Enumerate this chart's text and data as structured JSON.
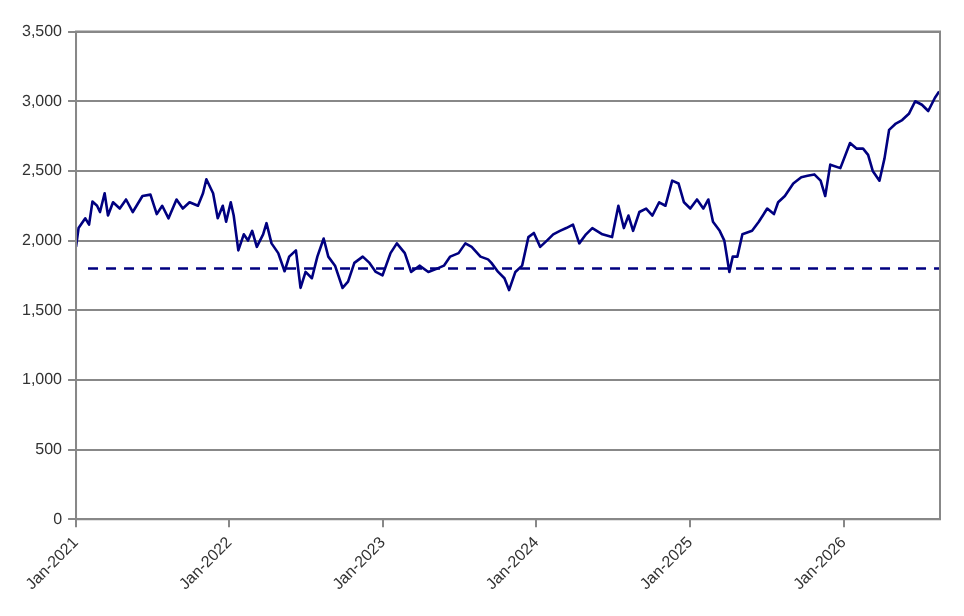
{
  "chart_data": {
    "type": "line",
    "x": [
      "2021-01-01",
      "2021-01-07",
      "2021-01-23",
      "2021-02-01",
      "2021-02-09",
      "2021-02-20",
      "2021-02-27",
      "2021-03-10",
      "2021-03-18",
      "2021-03-30",
      "2021-04-15",
      "2021-04-30",
      "2021-05-16",
      "2021-06-08",
      "2021-06-27",
      "2021-07-12",
      "2021-07-25",
      "2021-08-09",
      "2021-08-28",
      "2021-09-12",
      "2021-09-28",
      "2021-10-18",
      "2021-10-30",
      "2021-11-07",
      "2021-11-23",
      "2021-12-04",
      "2021-12-16",
      "2021-12-24",
      "2022-01-04",
      "2022-01-11",
      "2022-01-22",
      "2022-02-04",
      "2022-02-14",
      "2022-02-24",
      "2022-03-07",
      "2022-03-22",
      "2022-03-30",
      "2022-04-11",
      "2022-04-27",
      "2022-05-12",
      "2022-05-23",
      "2022-06-08",
      "2022-06-19",
      "2022-07-01",
      "2022-07-16",
      "2022-07-29",
      "2022-08-13",
      "2022-08-24",
      "2022-09-09",
      "2022-09-27",
      "2022-10-10",
      "2022-10-25",
      "2022-11-14",
      "2022-11-30",
      "2022-12-15",
      "2022-12-31",
      "2023-01-19",
      "2023-02-03",
      "2023-02-22",
      "2023-03-09",
      "2023-03-29",
      "2023-04-19",
      "2023-05-07",
      "2023-05-26",
      "2023-06-10",
      "2023-06-30",
      "2023-07-16",
      "2023-07-31",
      "2023-08-21",
      "2023-09-08",
      "2023-09-16",
      "2023-10-02",
      "2023-10-17",
      "2023-10-28",
      "2023-11-12",
      "2023-11-28",
      "2023-12-13",
      "2023-12-26",
      "2024-01-10",
      "2024-01-26",
      "2024-02-10",
      "2024-02-26",
      "2024-03-12",
      "2024-03-28",
      "2024-04-12",
      "2024-04-28",
      "2024-05-13",
      "2024-06-06",
      "2024-06-29",
      "2024-07-14",
      "2024-07-27",
      "2024-08-07",
      "2024-08-18",
      "2024-09-02",
      "2024-09-18",
      "2024-10-03",
      "2024-10-19",
      "2024-11-03",
      "2024-11-19",
      "2024-12-04",
      "2024-12-17",
      "2025-01-01",
      "2025-01-17",
      "2025-02-01",
      "2025-02-13",
      "2025-02-24",
      "2025-03-12",
      "2025-03-23",
      "2025-04-04",
      "2025-04-12",
      "2025-04-23",
      "2025-05-05",
      "2025-05-28",
      "2025-06-13",
      "2025-07-03",
      "2025-07-19",
      "2025-07-29",
      "2025-08-14",
      "2025-09-03",
      "2025-09-22",
      "2025-10-07",
      "2025-10-23",
      "2025-11-07",
      "2025-11-18",
      "2025-11-30",
      "2025-12-24",
      "2026-01-16",
      "2026-02-01",
      "2026-02-16",
      "2026-02-28",
      "2026-03-11",
      "2026-03-27",
      "2026-04-08",
      "2026-04-19",
      "2026-05-05",
      "2026-05-20",
      "2026-06-05",
      "2026-06-20",
      "2026-07-06",
      "2026-07-21",
      "2026-08-06",
      "2026-08-16"
    ],
    "series": [
      {
        "color": "#000080",
        "values": [
          1955,
          2090,
          2160,
          2115,
          2280,
          2250,
          2205,
          2340,
          2180,
          2275,
          2230,
          2295,
          2205,
          2320,
          2330,
          2190,
          2250,
          2160,
          2295,
          2230,
          2275,
          2250,
          2340,
          2440,
          2340,
          2160,
          2250,
          2135,
          2275,
          2180,
          1930,
          2045,
          2000,
          2070,
          1955,
          2045,
          2125,
          1980,
          1910,
          1780,
          1885,
          1930,
          1660,
          1775,
          1730,
          1885,
          2015,
          1885,
          1820,
          1660,
          1705,
          1840,
          1885,
          1840,
          1775,
          1750,
          1910,
          1980,
          1910,
          1775,
          1820,
          1775,
          1795,
          1820,
          1885,
          1910,
          1980,
          1955,
          1885,
          1865,
          1840,
          1775,
          1730,
          1645,
          1775,
          1820,
          2025,
          2055,
          1955,
          2000,
          2045,
          2070,
          2090,
          2115,
          1980,
          2045,
          2090,
          2045,
          2025,
          2250,
          2090,
          2180,
          2070,
          2205,
          2230,
          2180,
          2275,
          2250,
          2430,
          2410,
          2275,
          2230,
          2295,
          2230,
          2295,
          2135,
          2070,
          2000,
          1775,
          1885,
          1885,
          2045,
          2070,
          2135,
          2230,
          2190,
          2275,
          2320,
          2410,
          2455,
          2465,
          2475,
          2430,
          2320,
          2545,
          2520,
          2700,
          2660,
          2660,
          2615,
          2500,
          2430,
          2590,
          2795,
          2840,
          2865,
          2910,
          3000,
          2975,
          2930,
          3025,
          3070
        ]
      }
    ],
    "xlim": [
      "2021-01-01",
      "2026-08-18"
    ],
    "xticks": [
      {
        "value": "2021-01-01",
        "label": "Jan-2021"
      },
      {
        "value": "2022-01-01",
        "label": "Jan-2022"
      },
      {
        "value": "2023-01-01",
        "label": "Jan-2023"
      },
      {
        "value": "2024-01-01",
        "label": "Jan-2024"
      },
      {
        "value": "2025-01-01",
        "label": "Jan-2025"
      },
      {
        "value": "2026-01-01",
        "label": "Jan-2026"
      }
    ],
    "ylim": [
      0,
      3500
    ],
    "yticks": [
      0,
      500,
      {
        "value": 1000,
        "label": "1,000"
      },
      {
        "value": 1500,
        "label": "1,500"
      },
      {
        "value": 2000,
        "label": "2,000"
      },
      {
        "value": 2500,
        "label": "2,500"
      },
      {
        "value": 3000,
        "label": "3,000"
      },
      {
        "value": 3500,
        "label": "3,500"
      }
    ],
    "ref_lines": [
      {
        "axis": "y",
        "value": 1800,
        "color": "#000080",
        "line_style": "dashed"
      }
    ],
    "grid": "y",
    "marker": "none",
    "line_style": "solid"
  }
}
